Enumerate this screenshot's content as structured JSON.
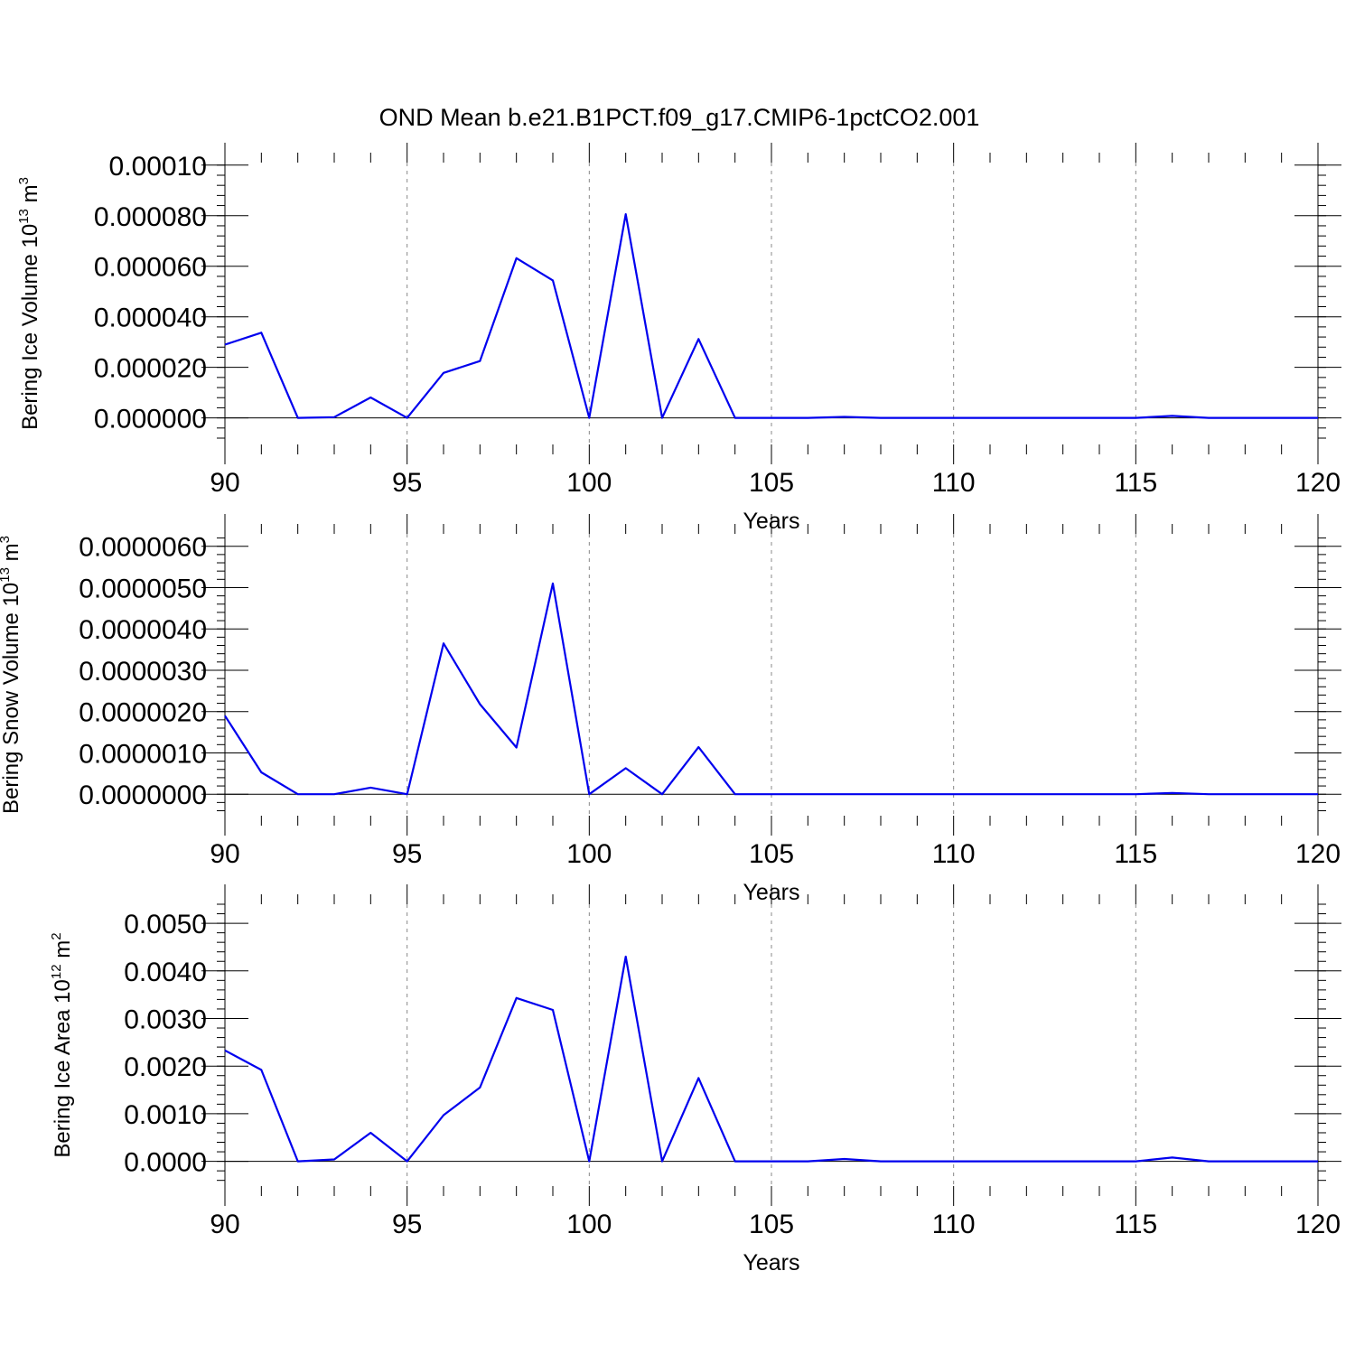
{
  "title": "OND Mean b.e21.B1PCT.f09_g17.CMIP6-1pctCO2.001",
  "line_color": "#0000ee",
  "chart_data": [
    {
      "type": "line",
      "xlabel": "Years",
      "ylabel": {
        "main": "Bering Ice Volume 10",
        "exp": "13",
        "unit": " m",
        "unit_exp": "3"
      },
      "xlim": [
        90,
        120
      ],
      "ylim": [
        -1.05e-05,
        0.000101
      ],
      "grid": "vertical dashed at major x ticks",
      "x_ticks": [
        90,
        95,
        100,
        105,
        110,
        115,
        120
      ],
      "x_tick_labels": [
        "90",
        "95",
        "100",
        "105",
        "110",
        "115",
        "120"
      ],
      "y_ticks": [
        0,
        2e-05,
        4e-05,
        6e-05,
        8e-05,
        0.0001
      ],
      "y_tick_labels": [
        "0.000000",
        "0.000020",
        "0.000040",
        "0.000060",
        "0.000080",
        "0.00010"
      ],
      "y_minor_step": 4e-06,
      "series": [
        {
          "x": [
            90,
            91,
            92,
            93,
            94,
            95,
            96,
            97,
            98,
            99,
            100,
            101,
            102,
            103,
            104,
            105,
            106,
            107,
            108,
            109,
            110,
            111,
            112,
            113,
            114,
            115,
            116,
            117,
            118,
            119,
            120
          ],
          "values": [
            2.9e-05,
            3.37e-05,
            0,
            3e-07,
            8.1e-06,
            0,
            1.78e-05,
            2.25e-05,
            6.32e-05,
            5.44e-05,
            0,
            8.06e-05,
            0,
            3.12e-05,
            0,
            0,
            0,
            4e-07,
            0,
            0,
            0,
            0,
            0,
            0,
            0,
            0,
            8e-07,
            0,
            0,
            0,
            0
          ]
        }
      ]
    },
    {
      "type": "line",
      "xlabel": "Years",
      "ylabel": {
        "main": "Bering Snow Volume 10",
        "exp": "13",
        "unit": " m",
        "unit_exp": "3"
      },
      "xlim": [
        90,
        120
      ],
      "ylim": [
        -5.2e-07,
        6.3e-06
      ],
      "grid": "vertical dashed at major x ticks",
      "x_ticks": [
        90,
        95,
        100,
        105,
        110,
        115,
        120
      ],
      "x_tick_labels": [
        "90",
        "95",
        "100",
        "105",
        "110",
        "115",
        "120"
      ],
      "y_ticks": [
        0,
        1e-06,
        2e-06,
        3e-06,
        4e-06,
        5e-06,
        6e-06
      ],
      "y_tick_labels": [
        "0.0000000",
        "0.0000010",
        "0.0000020",
        "0.0000030",
        "0.0000040",
        "0.0000050",
        "0.0000060"
      ],
      "y_minor_step": 2e-07,
      "series": [
        {
          "x": [
            90,
            91,
            92,
            93,
            94,
            95,
            96,
            97,
            98,
            99,
            100,
            101,
            102,
            103,
            104,
            105,
            106,
            107,
            108,
            109,
            110,
            111,
            112,
            113,
            114,
            115,
            116,
            117,
            118,
            119,
            120
          ],
          "values": [
            1.9e-06,
            5.3e-07,
            0,
            0,
            1.6e-07,
            0,
            3.65e-06,
            2.18e-06,
            1.13e-06,
            5.1e-06,
            0,
            6.3e-07,
            0,
            1.14e-06,
            0,
            0,
            0,
            0,
            0,
            0,
            0,
            0,
            0,
            0,
            0,
            0,
            3e-08,
            0,
            0,
            0,
            0
          ]
        }
      ]
    },
    {
      "type": "line",
      "xlabel": "Years",
      "ylabel": {
        "main": "Bering Ice Area 10",
        "exp": "12",
        "unit": " m",
        "unit_exp": "2"
      },
      "xlim": [
        90,
        120
      ],
      "ylim": [
        -0.00052,
        0.0054
      ],
      "grid": "vertical dashed at major x ticks",
      "x_ticks": [
        90,
        95,
        100,
        105,
        110,
        115,
        120
      ],
      "x_tick_labels": [
        "90",
        "95",
        "100",
        "105",
        "110",
        "115",
        "120"
      ],
      "y_ticks": [
        0,
        0.001,
        0.002,
        0.003,
        0.004,
        0.005
      ],
      "y_tick_labels": [
        "0.0000",
        "0.0010",
        "0.0020",
        "0.0030",
        "0.0040",
        "0.0050"
      ],
      "y_minor_step": 0.0002,
      "series": [
        {
          "x": [
            90,
            91,
            92,
            93,
            94,
            95,
            96,
            97,
            98,
            99,
            100,
            101,
            102,
            103,
            104,
            105,
            106,
            107,
            108,
            109,
            110,
            111,
            112,
            113,
            114,
            115,
            116,
            117,
            118,
            119,
            120
          ],
          "values": [
            0.00233,
            0.00192,
            0,
            4e-05,
            0.0006,
            0,
            0.00097,
            0.00155,
            0.00343,
            0.00318,
            0,
            0.0043,
            0,
            0.00175,
            0,
            0,
            0,
            5e-05,
            0,
            0,
            0,
            0,
            0,
            0,
            0,
            0,
            8e-05,
            0,
            0,
            0,
            0
          ]
        }
      ]
    }
  ]
}
